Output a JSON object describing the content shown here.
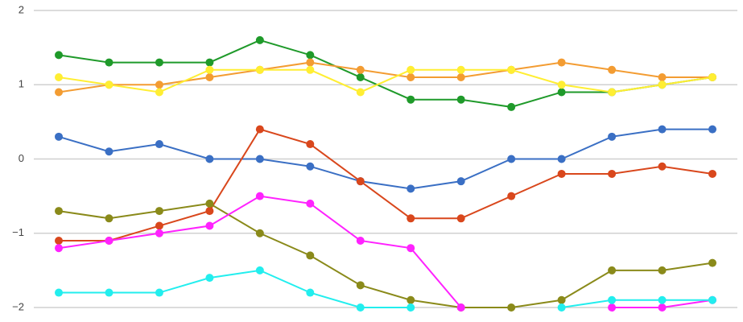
{
  "chart_data": {
    "type": "line",
    "categories": [
      null,
      null,
      null,
      null,
      null,
      null,
      null,
      null,
      null,
      null,
      null,
      null,
      null,
      null
    ],
    "ylim": [
      -2,
      2
    ],
    "yticks": [
      2,
      1,
      0,
      {
        "value": -1,
        "label": "−1"
      },
      {
        "value": -2,
        "label": "−2"
      }
    ],
    "grid": true,
    "series": [
      {
        "color": "#1f9a2a",
        "values": [
          1.4,
          1.3,
          1.3,
          1.3,
          1.6,
          1.4,
          1.1,
          0.8,
          0.8,
          0.7,
          0.9,
          0.9,
          1.0,
          1.1
        ]
      },
      {
        "color": "#f39c32",
        "values": [
          0.9,
          1.0,
          1.0,
          1.1,
          1.2,
          1.3,
          1.2,
          1.1,
          1.1,
          1.2,
          1.3,
          1.2,
          1.1,
          1.1
        ]
      },
      {
        "color": "#ffee33",
        "values": [
          1.1,
          1.0,
          0.9,
          1.2,
          1.2,
          1.2,
          0.9,
          1.2,
          1.2,
          1.2,
          1.0,
          0.9,
          1.0,
          1.1
        ]
      },
      {
        "color": "#3a6fc4",
        "values": [
          0.3,
          0.1,
          0.2,
          0.0,
          0.0,
          -0.1,
          -0.3,
          -0.4,
          -0.3,
          0.0,
          0.0,
          0.3,
          0.4,
          0.4
        ]
      },
      {
        "color": "#d9471c",
        "values": [
          -1.1,
          -1.1,
          -0.9,
          -0.7,
          0.4,
          0.2,
          -0.3,
          -0.8,
          -0.8,
          -0.5,
          -0.2,
          -0.2,
          -0.1,
          -0.2
        ]
      },
      {
        "color": "#8a8a1a",
        "values": [
          -0.7,
          -0.8,
          -0.7,
          -0.6,
          -1.0,
          -1.3,
          -1.7,
          -1.9,
          -2.0,
          -2.0,
          -1.9,
          -1.5,
          -1.5,
          -1.4
        ]
      },
      {
        "color": "#ff22ff",
        "values": [
          -1.2,
          -1.1,
          -1.0,
          -0.9,
          -0.5,
          -0.6,
          -1.1,
          -1.2,
          -2.0,
          null,
          null,
          -2.0,
          -2.0,
          -1.9
        ]
      },
      {
        "color": "#22eeee",
        "values": [
          -1.8,
          -1.8,
          -1.8,
          -1.6,
          -1.5,
          -1.8,
          -2.0,
          -2.0,
          null,
          null,
          -2.0,
          -1.9,
          -1.9,
          -1.9
        ]
      }
    ]
  }
}
